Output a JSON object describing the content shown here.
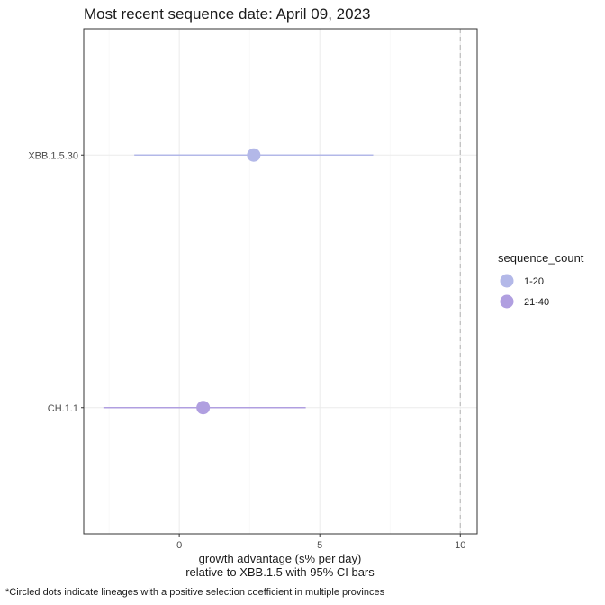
{
  "chart_data": {
    "type": "scatter",
    "title": "Most recent sequence date: April 09, 2023",
    "xlabel_line1": "growth advantage (s% per day)",
    "xlabel_line2": "relative to  XBB.1.5  with 95% CI bars",
    "ylabel": "",
    "xlim": [
      -3.4,
      10.6
    ],
    "x_ticks": [
      0,
      5,
      10
    ],
    "grid": true,
    "reference_line_x": 10,
    "categories": [
      "XBB.1.5.30",
      "CH.1.1"
    ],
    "points": [
      {
        "lineage": "XBB.1.5.30",
        "estimate": 2.65,
        "ci_low": -1.6,
        "ci_high": 6.9,
        "sequence_count": "1-20",
        "color": "#b3b8e8"
      },
      {
        "lineage": "CH.1.1",
        "estimate": 0.85,
        "ci_low": -2.7,
        "ci_high": 4.5,
        "sequence_count": "21-40",
        "color": "#b09fe0"
      }
    ],
    "legend": {
      "title": "sequence_count",
      "position": "right",
      "items": [
        {
          "label": "1-20",
          "color": "#b3b8e8"
        },
        {
          "label": "21-40",
          "color": "#b09fe0"
        }
      ]
    },
    "caption": "*Circled dots indicate lineages with a positive selection coefficient in multiple provinces"
  },
  "colors": {
    "panel_border": "#333333",
    "grid_major": "#ebebeb",
    "grid_minor": "#f5f5f5",
    "reference_line": "#bdbdbd",
    "tick": "#333333"
  }
}
